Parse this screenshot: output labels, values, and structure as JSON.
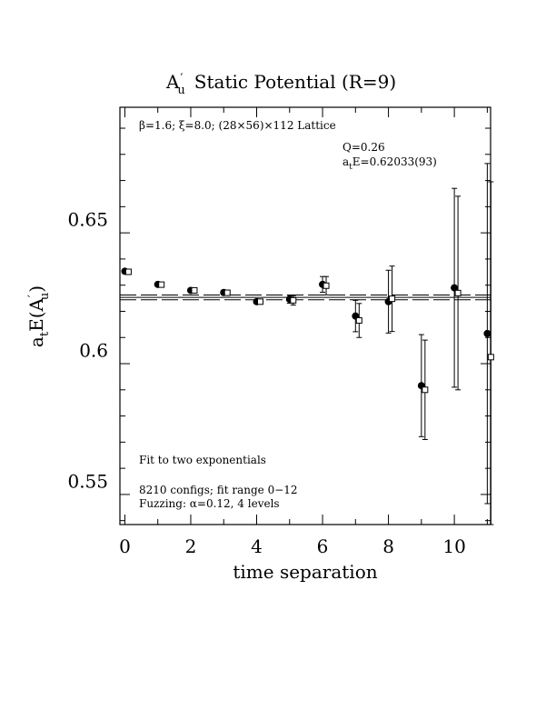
{
  "chart_data": {
    "type": "scatter",
    "title_main": "A",
    "title_prime": "′",
    "title_sub": "u",
    "title_rest": "Static Potential (R=9)",
    "xlabel": "time separation",
    "ylabel_a": "a",
    "ylabel_t": "t",
    "ylabel_mid": "E(A",
    "ylabel_prime": "′",
    "ylabel_u": "u",
    "ylabel_end": ")",
    "xlim": [
      -0.15,
      11.1
    ],
    "ylim": [
      0.5335,
      0.693
    ],
    "x_ticks": [
      0,
      2,
      4,
      6,
      8,
      10
    ],
    "x_tick_labels": [
      "0",
      "2",
      "4",
      "6",
      "8",
      "10"
    ],
    "y_ticks": [
      0.55,
      0.6,
      0.65
    ],
    "y_tick_labels": [
      "0.55",
      "0.6",
      "0.65"
    ],
    "annotations": {
      "lattice": "β=1.6; ξ=8.0; (28×56)×112 Lattice",
      "q": "Q=0.26",
      "energy_a": "a",
      "energy_t": "t",
      "energy_rest": "E=0.62033(93)",
      "fit": "Fit to two exponentials",
      "configs": "8210 configs; fit range 0−12",
      "fuzzing": "Fuzzing: α=0.12, 4 levels"
    },
    "fit": {
      "value": 0.62033,
      "error": 0.00093
    },
    "series": [
      {
        "marker": "filled-circle",
        "points": [
          {
            "x": 0,
            "y": 0.6303,
            "err": 0.0003
          },
          {
            "x": 1,
            "y": 0.6253,
            "err": 0.0003
          },
          {
            "x": 2,
            "y": 0.623,
            "err": 0.0004
          },
          {
            "x": 3,
            "y": 0.6222,
            "err": 0.0005
          },
          {
            "x": 4,
            "y": 0.6187,
            "err": 0.0007
          },
          {
            "x": 5,
            "y": 0.6196,
            "err": 0.0015
          },
          {
            "x": 6,
            "y": 0.6253,
            "err": 0.003
          },
          {
            "x": 7,
            "y": 0.6132,
            "err": 0.006
          },
          {
            "x": 8,
            "y": 0.6187,
            "err": 0.012
          },
          {
            "x": 9,
            "y": 0.5866,
            "err": 0.0195
          },
          {
            "x": 10,
            "y": 0.624,
            "err": 0.038
          },
          {
            "x": 11,
            "y": 0.6065,
            "err": 0.065
          }
        ]
      },
      {
        "marker": "open-square",
        "points": [
          {
            "x": 0,
            "y": 0.6301,
            "err": 0.0003
          },
          {
            "x": 1,
            "y": 0.6252,
            "err": 0.0003
          },
          {
            "x": 2,
            "y": 0.623,
            "err": 0.0004
          },
          {
            "x": 3,
            "y": 0.6221,
            "err": 0.0005
          },
          {
            "x": 4,
            "y": 0.6187,
            "err": 0.0008
          },
          {
            "x": 5,
            "y": 0.6192,
            "err": 0.0018
          },
          {
            "x": 6,
            "y": 0.6248,
            "err": 0.0035
          },
          {
            "x": 7,
            "y": 0.6115,
            "err": 0.0065
          },
          {
            "x": 8,
            "y": 0.6198,
            "err": 0.0125
          },
          {
            "x": 9,
            "y": 0.585,
            "err": 0.019
          },
          {
            "x": 10,
            "y": 0.622,
            "err": 0.037
          },
          {
            "x": 11,
            "y": 0.5975,
            "err": 0.067
          }
        ]
      }
    ]
  }
}
